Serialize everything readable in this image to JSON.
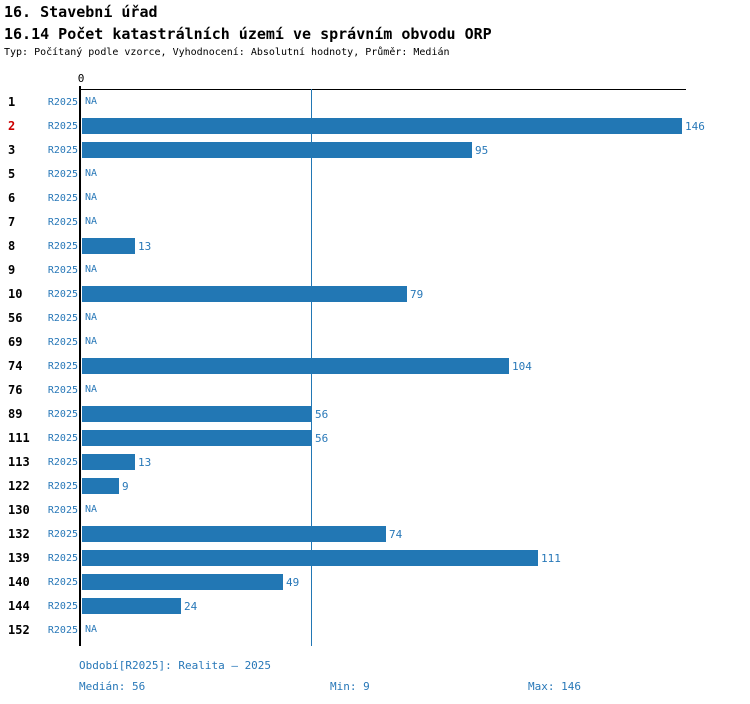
{
  "header": {
    "title": "16. Stavební úřad",
    "subtitle": "16.14 Počet katastrálních území ve správním obvodu ORP",
    "meta": "Typ: Počítaný podle vzorce, Vyhodnocení: Absolutní hodnoty, Průměr: Medián"
  },
  "chart_data": {
    "type": "bar",
    "orientation": "horizontal",
    "title": "16.14 Počet katastrálních území ve správním obvodu ORP",
    "series_label": "R2025",
    "na_label": "NA",
    "axis": {
      "origin_label": "0",
      "xmax": 146
    },
    "median": 56,
    "median_line": true,
    "highlighted_category": "2",
    "categories": [
      "1",
      "2",
      "3",
      "5",
      "6",
      "7",
      "8",
      "9",
      "10",
      "56",
      "69",
      "74",
      "76",
      "89",
      "111",
      "113",
      "122",
      "130",
      "132",
      "139",
      "140",
      "144",
      "152"
    ],
    "values": [
      null,
      146,
      95,
      null,
      null,
      null,
      13,
      null,
      79,
      null,
      null,
      104,
      null,
      56,
      56,
      13,
      9,
      null,
      74,
      111,
      49,
      24,
      null
    ]
  },
  "footer": {
    "period": "Období[R2025]: Realita – 2025",
    "median": "Medián: 56",
    "min": "Min: 9",
    "max": "Max: 146"
  },
  "colors": {
    "bar": "#2277b4",
    "text_blue": "#2878b8",
    "highlight_red": "#cc0000",
    "axis": "#000000"
  }
}
